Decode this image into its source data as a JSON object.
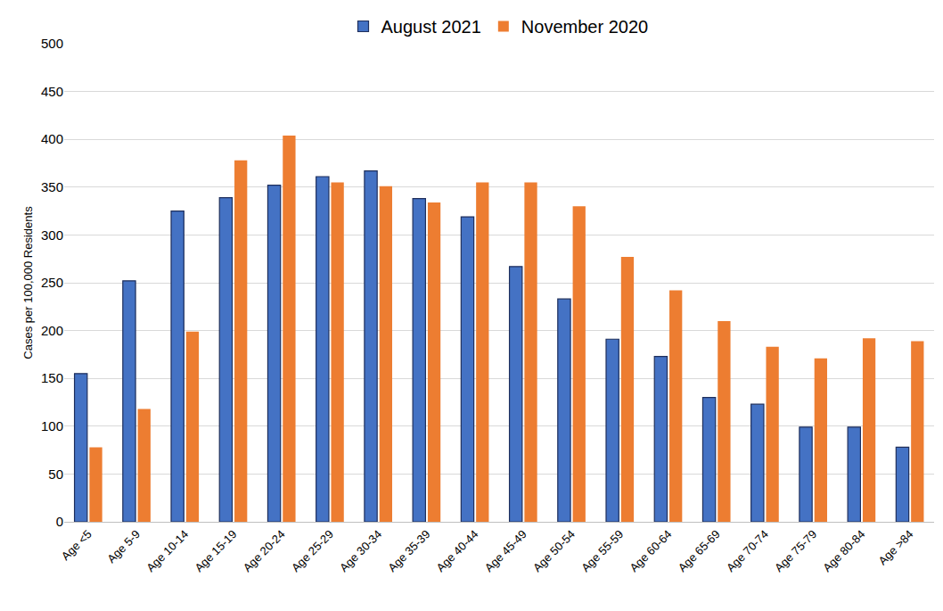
{
  "chart_data": {
    "type": "bar",
    "categories": [
      "Age <5",
      "Age 5-9",
      "Age 10-14",
      "Age 15-19",
      "Age 20-24",
      "Age 25-29",
      "Age 30-34",
      "Age 35-39",
      "Age 40-44",
      "Age 45-49",
      "Age 50-54",
      "Age 55-59",
      "Age 60-64",
      "Age 65-69",
      "Age 70-74",
      "Age 75-79",
      "Age 80-84",
      "Age >84"
    ],
    "series": [
      {
        "name": "August 2021",
        "color": "#4472c4",
        "values": [
          155,
          252,
          325,
          339,
          352,
          361,
          367,
          338,
          319,
          267,
          233,
          191,
          173,
          130,
          123,
          99,
          99,
          78
        ]
      },
      {
        "name": "November 2020",
        "color": "#ed7d31",
        "values": [
          78,
          118,
          199,
          378,
          404,
          355,
          351,
          334,
          355,
          355,
          330,
          277,
          242,
          210,
          183,
          171,
          192,
          189
        ]
      }
    ],
    "y_label": "Cases per 100,000 Residents",
    "ylim": [
      0,
      500
    ],
    "yticks": [
      0,
      50,
      100,
      150,
      200,
      250,
      300,
      350,
      400,
      450,
      500
    ],
    "grid": true,
    "legend": "top"
  }
}
